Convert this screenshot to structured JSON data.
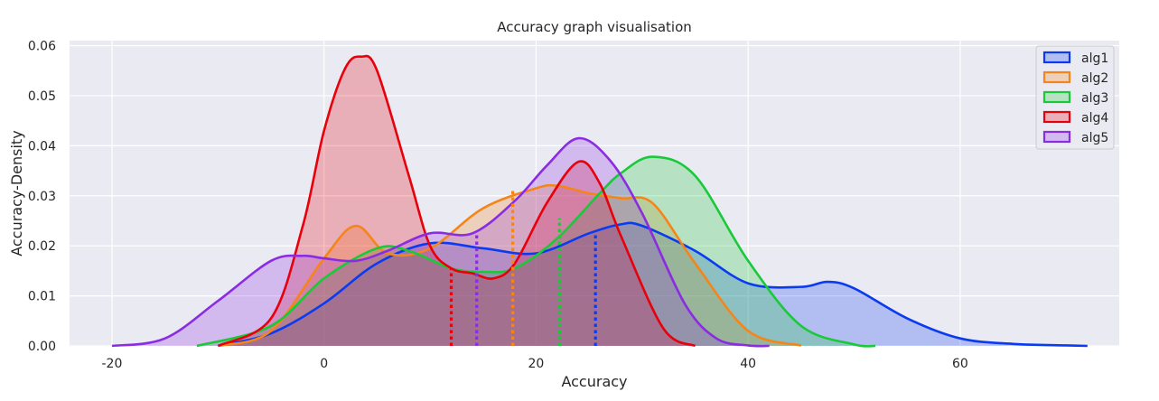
{
  "chart_data": {
    "type": "area",
    "title": "Accuracy graph visualisation",
    "xlabel": "Accuracy",
    "ylabel": "Accuracy-Density",
    "xlim": [
      -24,
      75
    ],
    "ylim": [
      0,
      0.061
    ],
    "xticks": [
      "-20",
      "0",
      "20",
      "40",
      "60"
    ],
    "yticks": [
      "0.00",
      "0.01",
      "0.02",
      "0.03",
      "0.04",
      "0.05",
      "0.06"
    ],
    "grid": true,
    "legend_position": "top-right",
    "background": "#eaeaf2",
    "series": [
      {
        "name": "alg1",
        "color": "#0b3bf0",
        "mean": 25.6,
        "mean_density": 0.0225,
        "x": [
          -10,
          -5,
          0,
          5,
          10,
          15,
          20,
          25,
          28,
          30,
          35,
          40,
          45,
          47.5,
          50,
          55,
          60,
          65,
          70,
          72
        ],
        "y": [
          0.0,
          0.0025,
          0.0085,
          0.0165,
          0.0205,
          0.0195,
          0.0185,
          0.0225,
          0.0243,
          0.024,
          0.019,
          0.0125,
          0.0118,
          0.0128,
          0.0115,
          0.0055,
          0.0015,
          0.0004,
          0.0001,
          0.0
        ]
      },
      {
        "name": "alg2",
        "color": "#f58518",
        "mean": 17.8,
        "mean_density": 0.031,
        "x": [
          -10,
          -5,
          0,
          3,
          6,
          10,
          15,
          20,
          22,
          25,
          28,
          31,
          35,
          40,
          45
        ],
        "y": [
          0.0,
          0.003,
          0.0175,
          0.024,
          0.0185,
          0.0195,
          0.0275,
          0.0315,
          0.032,
          0.0305,
          0.0295,
          0.0285,
          0.0165,
          0.003,
          0.0001
        ]
      },
      {
        "name": "alg3",
        "color": "#1ac938",
        "mean": 22.2,
        "mean_density": 0.0255,
        "x": [
          -12,
          -5,
          0,
          5,
          8,
          12,
          15,
          18,
          22,
          26,
          28,
          31,
          35,
          40,
          45,
          50,
          52
        ],
        "y": [
          0.0,
          0.004,
          0.0135,
          0.0195,
          0.019,
          0.0155,
          0.0148,
          0.0155,
          0.0215,
          0.0305,
          0.0345,
          0.0378,
          0.034,
          0.017,
          0.004,
          0.0003,
          0.0
        ]
      },
      {
        "name": "alg4",
        "color": "#e8000b",
        "mean": 12.0,
        "mean_density": 0.0155,
        "x": [
          -10,
          -5,
          -2,
          0,
          2,
          3.5,
          5,
          8,
          10,
          12,
          14,
          16,
          18,
          21,
          24,
          26,
          28,
          32,
          35
        ],
        "y": [
          0.0,
          0.0055,
          0.024,
          0.043,
          0.0555,
          0.0578,
          0.055,
          0.034,
          0.02,
          0.0155,
          0.0145,
          0.0135,
          0.0165,
          0.0285,
          0.0368,
          0.0325,
          0.022,
          0.0035,
          0.0
        ]
      },
      {
        "name": "alg5",
        "color": "#8b2be2",
        "mean": 14.4,
        "mean_density": 0.0225,
        "x": [
          -20,
          -15,
          -10,
          -5,
          -2,
          0,
          3,
          6,
          10,
          14,
          18,
          21,
          24,
          27,
          30,
          34,
          37,
          40,
          42
        ],
        "y": [
          0.0,
          0.0015,
          0.009,
          0.017,
          0.018,
          0.0175,
          0.017,
          0.019,
          0.0225,
          0.0225,
          0.029,
          0.036,
          0.0415,
          0.037,
          0.0265,
          0.0085,
          0.0015,
          0.0001,
          0.0
        ]
      }
    ]
  }
}
